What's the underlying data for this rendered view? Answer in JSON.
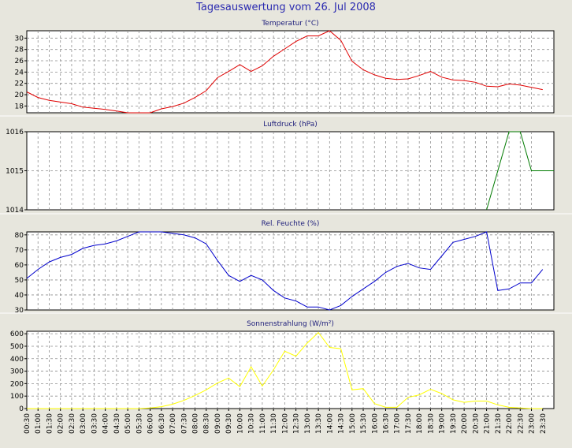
{
  "page_title": "Tagesauswertung vom 26. Jul 2008",
  "x_labels": [
    "00:30",
    "01:00",
    "01:30",
    "02:00",
    "02:30",
    "03:00",
    "03:30",
    "04:00",
    "04:30",
    "05:00",
    "05:30",
    "06:00",
    "06:30",
    "07:00",
    "07:30",
    "08:00",
    "08:30",
    "09:00",
    "09:30",
    "10:00",
    "10:30",
    "11:00",
    "11:30",
    "12:00",
    "12:30",
    "13:00",
    "13:30",
    "14:00",
    "14:30",
    "15:00",
    "15:30",
    "16:00",
    "16:30",
    "17:00",
    "17:30",
    "18:00",
    "18:30",
    "19:00",
    "19:30",
    "20:00",
    "20:30",
    "21:00",
    "21:30",
    "22:00",
    "22:30",
    "23:00",
    "23:30"
  ],
  "chart_data": [
    {
      "type": "line",
      "title": "Temperatur (°C)",
      "color": "#e00000",
      "ylim": [
        16.8,
        31.3
      ],
      "yticks": [
        18,
        20,
        22,
        24,
        26,
        28,
        30
      ],
      "x": [
        0,
        0.5,
        1,
        1.5,
        2,
        2.5,
        3,
        3.5,
        4,
        4.5,
        5,
        5.5,
        6,
        6.5,
        7,
        7.5,
        8,
        8.5,
        9,
        9.5,
        10,
        10.5,
        11,
        11.5,
        12,
        12.5,
        13,
        13.5,
        14,
        14.5,
        15,
        15.5,
        16,
        16.5,
        17,
        17.5,
        18,
        18.5,
        19,
        19.5,
        20,
        20.5,
        21,
        21.5,
        22,
        22.5,
        23
      ],
      "values": [
        20.5,
        19.5,
        19,
        18.7,
        18.4,
        17.8,
        17.6,
        17.4,
        17.1,
        16.8,
        16.8,
        16.8,
        17.5,
        17.9,
        18.5,
        19.5,
        20.7,
        23,
        24.1,
        25.3,
        24.1,
        25.1,
        26.8,
        28.1,
        29.4,
        30.4,
        30.4,
        31.3,
        29.6,
        25.9,
        24.4,
        23.5,
        22.9,
        22.7,
        22.8,
        23.4,
        24.1,
        23.1,
        22.6,
        22.5,
        22.2,
        21.5,
        21.4,
        21.9,
        21.7,
        21.3,
        20.9
      ]
    },
    {
      "type": "line",
      "title": "Luftdruck (hPa)",
      "color": "#007a00",
      "ylim": [
        1014,
        1016
      ],
      "yticks": [
        1014,
        1015,
        1016
      ],
      "x": [
        20.5,
        21.5,
        22,
        22.5,
        23.5
      ],
      "values": [
        1014,
        1016,
        1016,
        1015,
        1015
      ]
    },
    {
      "type": "line",
      "title": "Rel. Feuchte (%)",
      "color": "#0000cc",
      "ylim": [
        30,
        82
      ],
      "yticks": [
        30,
        40,
        50,
        60,
        70,
        80
      ],
      "x": [
        0,
        0.5,
        1,
        1.5,
        2,
        2.5,
        3,
        3.5,
        4,
        4.5,
        5,
        5.5,
        6,
        6.5,
        7,
        7.5,
        8,
        8.5,
        9,
        9.5,
        10,
        10.5,
        11,
        11.5,
        12,
        12.5,
        13,
        13.5,
        14,
        14.5,
        15,
        15.5,
        16,
        16.5,
        17,
        17.5,
        18,
        18.5,
        19,
        19.5,
        20,
        20.5,
        21,
        21.5,
        22,
        22.5,
        23
      ],
      "values": [
        51,
        57,
        62,
        65,
        67,
        71,
        73,
        74,
        76,
        79,
        82,
        82,
        82,
        81,
        80,
        78,
        74,
        63,
        53,
        49,
        53,
        50,
        43,
        38,
        36,
        32,
        32,
        30,
        33,
        39,
        44,
        49,
        55,
        59,
        61,
        58,
        57,
        66,
        75,
        77,
        79,
        82,
        43,
        44,
        48,
        48,
        57
      ]
    },
    {
      "type": "line",
      "title": "Sonnenstrahlung (W/m²)",
      "color": "#ffff00",
      "ylim": [
        0,
        620
      ],
      "yticks": [
        0,
        100,
        200,
        300,
        400,
        500,
        600
      ],
      "x": [
        0,
        0.5,
        1,
        1.5,
        2,
        2.5,
        3,
        3.5,
        4,
        4.5,
        5,
        5.5,
        6,
        6.5,
        7,
        7.5,
        8,
        8.5,
        9,
        9.5,
        10,
        10.5,
        11,
        11.5,
        12,
        12.5,
        13,
        13.5,
        14,
        14.5,
        15,
        15.5,
        16,
        16.5,
        17,
        17.5,
        18,
        18.5,
        19,
        19.5,
        20,
        20.5,
        21,
        21.5,
        22,
        22.5,
        23
      ],
      "values": [
        0,
        0,
        0,
        0,
        0,
        0,
        0,
        0,
        0,
        0,
        0,
        5,
        15,
        35,
        65,
        105,
        150,
        205,
        245,
        175,
        335,
        180,
        310,
        460,
        420,
        525,
        610,
        490,
        480,
        150,
        160,
        40,
        10,
        10,
        90,
        110,
        155,
        120,
        70,
        50,
        60,
        60,
        30,
        10,
        5,
        0,
        0
      ]
    }
  ]
}
